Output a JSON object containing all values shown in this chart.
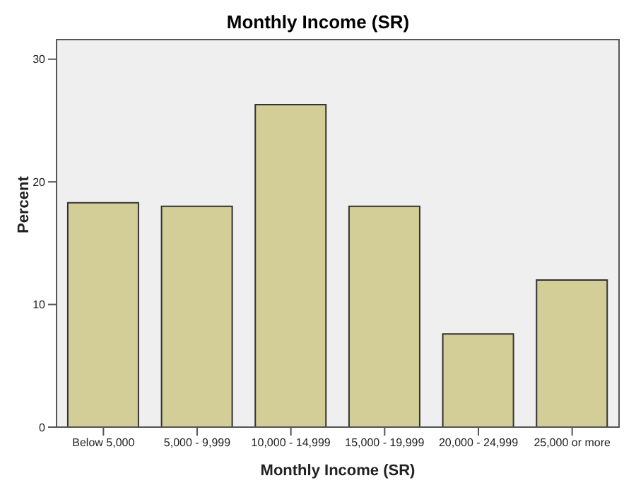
{
  "chart_data": {
    "type": "bar",
    "title": "Monthly Income (SR)",
    "xlabel": "Monthly Income (SR)",
    "ylabel": "Percent",
    "categories": [
      "Below 5,000",
      "5,000 - 9,999",
      "10,000 - 14,999",
      "15,000 - 19,999",
      "20,000 - 24,999",
      "25,000 or more"
    ],
    "values": [
      18.3,
      18.0,
      26.3,
      18.0,
      7.6,
      12.0
    ],
    "color": "#d3ce97",
    "ylim": [
      0,
      31.6
    ],
    "yticks": [
      0,
      10,
      20,
      30
    ]
  }
}
